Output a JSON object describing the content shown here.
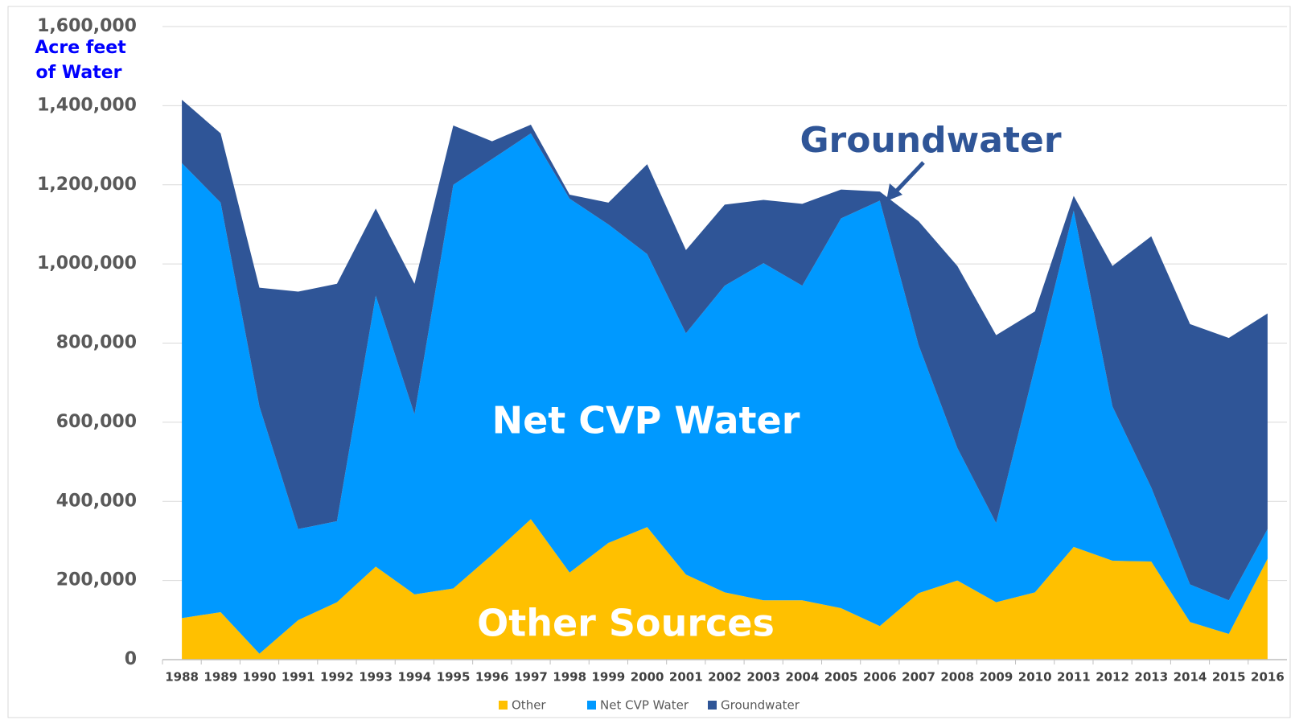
{
  "chart_data": {
    "type": "stacked_area",
    "ylabel_lines": [
      "Acre feet",
      "of Water"
    ],
    "annotations": [
      "Groundwater",
      "Net CVP Water",
      "Other Sources"
    ],
    "categories": [
      "1988",
      "1989",
      "1990",
      "1991",
      "1992",
      "1993",
      "1994",
      "1995",
      "1996",
      "1997",
      "1998",
      "1999",
      "2000",
      "2001",
      "2002",
      "2003",
      "2004",
      "2005",
      "2006",
      "2007",
      "2008",
      "2009",
      "2010",
      "2011",
      "2012",
      "2013",
      "2014",
      "2015",
      "2016"
    ],
    "series": [
      {
        "name": "Other",
        "color": "#ffc000",
        "values": [
          105000,
          120000,
          15000,
          100000,
          145000,
          235000,
          165000,
          180000,
          265000,
          355000,
          220000,
          295000,
          335000,
          215000,
          170000,
          150000,
          150000,
          130000,
          85000,
          168000,
          200000,
          145000,
          170000,
          285000,
          250000,
          248000,
          95000,
          65000,
          255000
        ]
      },
      {
        "name": "Net CVP Water",
        "color": "#0099ff",
        "values": [
          1150000,
          1035000,
          625000,
          230000,
          205000,
          685000,
          455000,
          1020000,
          1000000,
          975000,
          945000,
          805000,
          690000,
          610000,
          775000,
          852000,
          795000,
          985000,
          1075000,
          627000,
          335000,
          200000,
          570000,
          850000,
          390000,
          187000,
          95000,
          85000,
          75000
        ]
      },
      {
        "name": "Groundwater",
        "color": "#2f5597",
        "values": [
          160000,
          175000,
          300000,
          600000,
          600000,
          220000,
          330000,
          150000,
          45000,
          22000,
          10000,
          55000,
          227000,
          210000,
          205000,
          160000,
          207000,
          73000,
          23000,
          313000,
          460000,
          475000,
          140000,
          37000,
          355000,
          635000,
          658000,
          663000,
          545000
        ]
      }
    ],
    "ylim": [
      0,
      1600000
    ],
    "yticks": [
      0,
      {
        "value": 200000,
        "label": "200,000"
      },
      {
        "value": 400000,
        "label": "400,000"
      },
      {
        "value": 600000,
        "label": "600,000"
      },
      {
        "value": 800000,
        "label": "800,000"
      },
      {
        "value": 1000000,
        "label": "1,000,000"
      },
      {
        "value": 1200000,
        "label": "1,200,000"
      },
      {
        "value": 1400000,
        "label": "1,400,000"
      },
      {
        "value": 1600000,
        "label": "1,600,000"
      }
    ],
    "grid": true,
    "legend": "bottom"
  }
}
